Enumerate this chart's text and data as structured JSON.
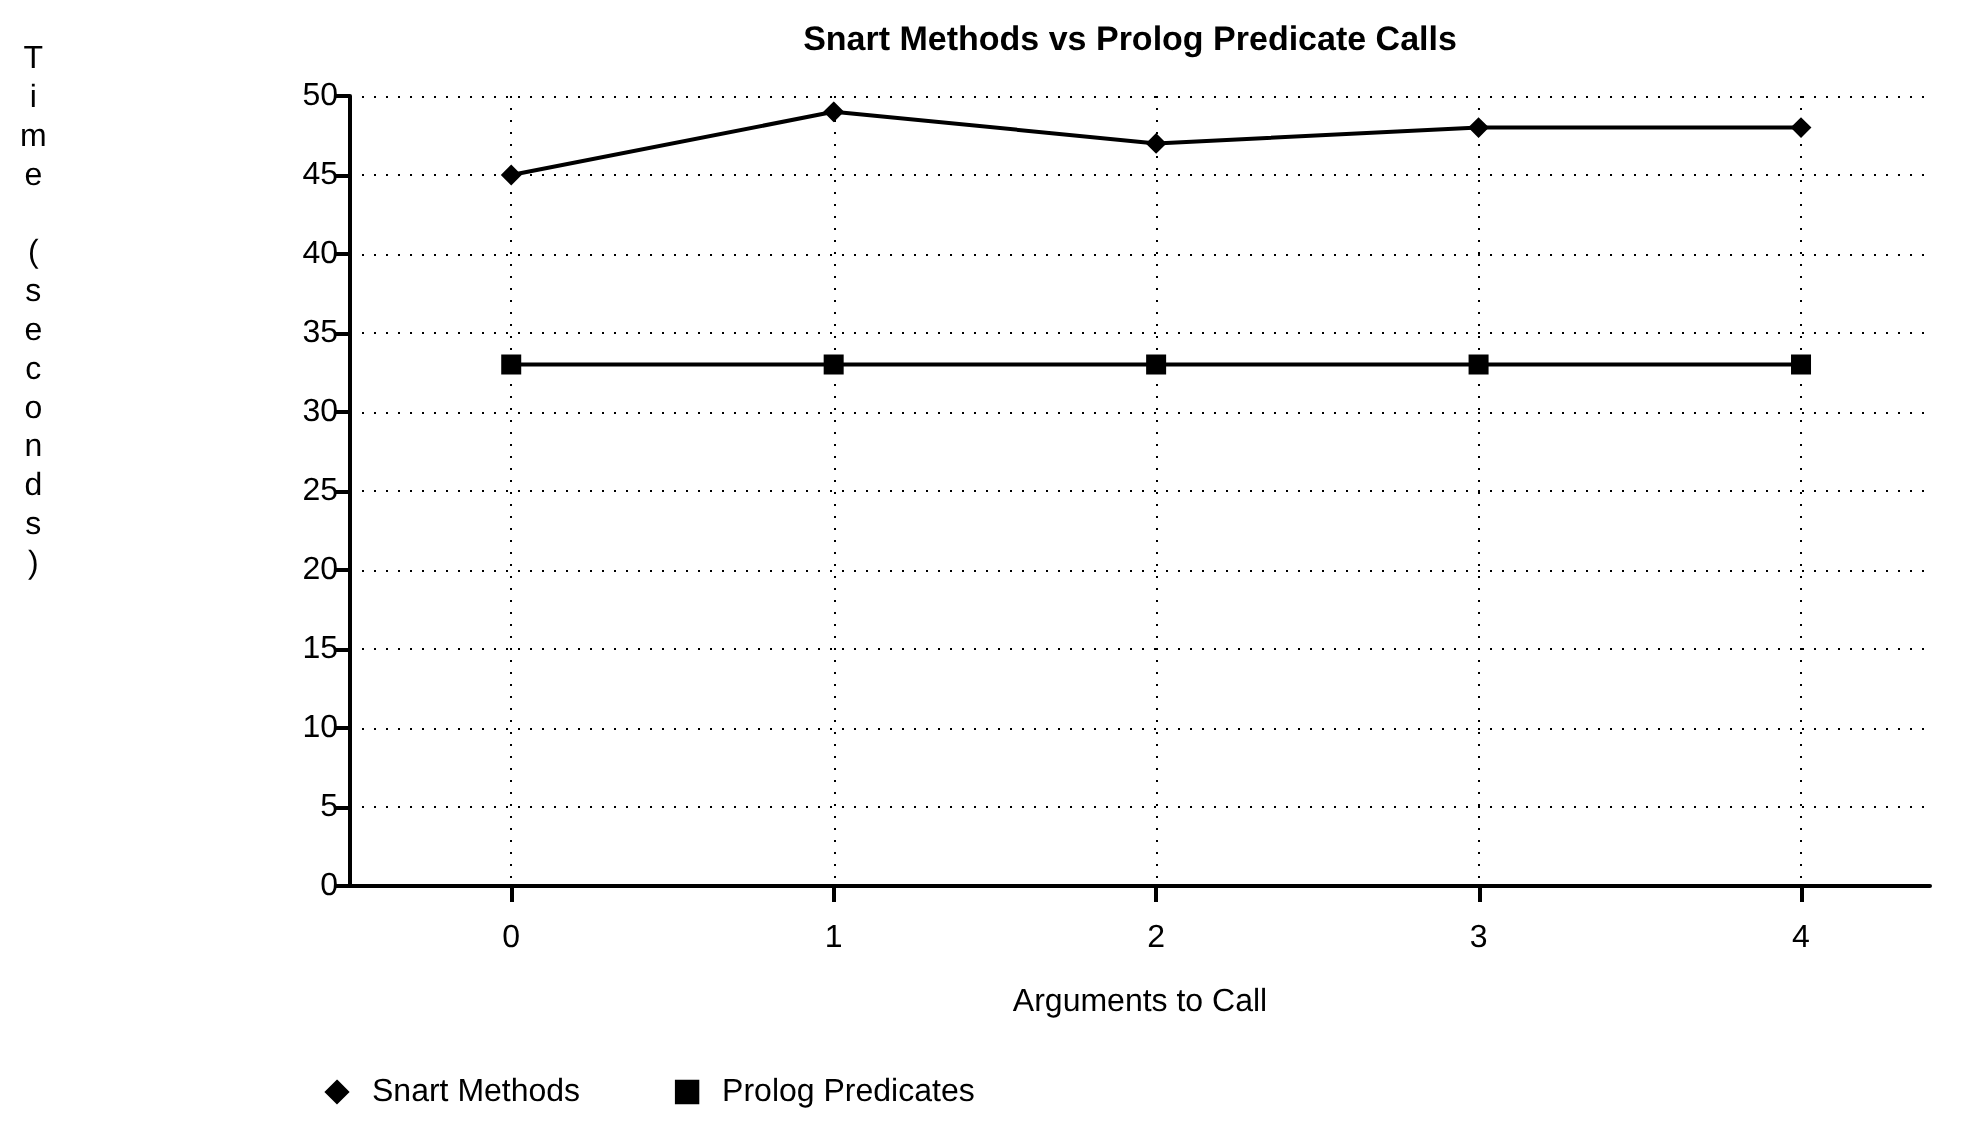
{
  "chart_data": {
    "type": "line",
    "title": "Snart Methods vs Prolog Predicate Calls",
    "xlabel": "Arguments to Call",
    "ylabel": "Time (seconds)",
    "x": [
      0,
      1,
      2,
      3,
      4
    ],
    "series": [
      {
        "name": "Snart Methods",
        "color": "#000000",
        "marker": "diamond",
        "values": [
          45,
          49,
          47,
          48,
          48
        ]
      },
      {
        "name": "Prolog Predicates",
        "color": "#000000",
        "marker": "square",
        "values": [
          33,
          33,
          33,
          33,
          33
        ]
      }
    ],
    "xlim": [
      -0.5,
      4.4
    ],
    "xticks": [
      0,
      1,
      2,
      3,
      4
    ],
    "ylim": [
      0,
      50
    ],
    "yticks": [
      0,
      5,
      10,
      15,
      20,
      25,
      30,
      35,
      40,
      45,
      50
    ],
    "grid": true,
    "legend": "bottom",
    "line_style": "solid"
  }
}
